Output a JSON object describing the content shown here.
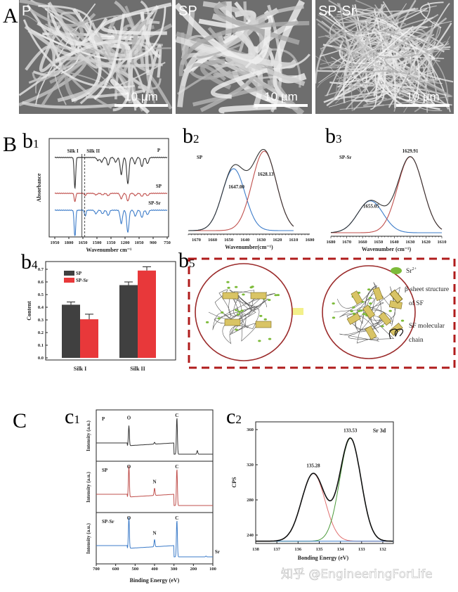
{
  "labels": {
    "A": "A",
    "B": "B",
    "C": "C",
    "b1": [
      "b",
      "1"
    ],
    "b2": [
      "b",
      "2"
    ],
    "b3": [
      "b",
      "3"
    ],
    "b4": [
      "b",
      "4"
    ],
    "b5": [
      "b",
      "5"
    ],
    "c1": [
      "c",
      "1"
    ],
    "c2": [
      "c",
      "2"
    ]
  },
  "sem": [
    {
      "label": "P",
      "scale": "10 µm"
    },
    {
      "label": "SP",
      "scale": "10 µm"
    },
    {
      "label": "SP-Sr",
      "scale": "10 µm"
    }
  ],
  "schematic": {
    "legend_sr": "Sr",
    "legend_sr_sup": "2+",
    "legend_beta_1": "β-sheet structure",
    "legend_beta_2": "of SF",
    "legend_chain_1": "SF molecular",
    "legend_chain_2": "chain",
    "colors": {
      "border": "#b01c1c",
      "sr": "#7dbb3a",
      "beta": "#d9c465",
      "arrow": "#f3f08a"
    }
  },
  "watermark": "知乎 @EngineeringForLife",
  "chart_data": [
    {
      "id": "b1",
      "type": "line",
      "xlabel": "Wavenumber cm⁻¹",
      "ylabel": "Absorbance",
      "xlim": [
        1950,
        750
      ],
      "xticks": [
        1950,
        1800,
        1650,
        1500,
        1350,
        1200,
        1050,
        900,
        750
      ],
      "annotations": [
        {
          "text": "Silk I",
          "x": 1660,
          "style": "solid"
        },
        {
          "text": "Silk II",
          "x": 1630,
          "style": "dashed"
        }
      ],
      "series": [
        {
          "name": "P",
          "color": "#333333",
          "peaks": [
            [
              1735,
              1.0
            ],
            [
              1490,
              0.1
            ],
            [
              1450,
              0.15
            ],
            [
              1380,
              0.25
            ],
            [
              1300,
              0.15
            ],
            [
              1240,
              0.55
            ],
            [
              1170,
              0.85
            ],
            [
              1095,
              0.2
            ],
            [
              1020,
              0.3
            ],
            [
              960,
              0.2
            ]
          ]
        },
        {
          "name": "SP",
          "color": "#c0504d",
          "peaks": [
            [
              1735,
              0.55
            ],
            [
              1625,
              0.15
            ],
            [
              1510,
              0.1
            ],
            [
              1440,
              0.1
            ],
            [
              1380,
              0.15
            ],
            [
              1240,
              0.35
            ],
            [
              1170,
              0.5
            ],
            [
              1090,
              0.15
            ],
            [
              1020,
              0.2
            ],
            [
              960,
              0.15
            ]
          ]
        },
        {
          "name": "SP-Sr",
          "color": "#3d7cc9",
          "peaks": [
            [
              1735,
              0.95
            ],
            [
              1625,
              0.2
            ],
            [
              1510,
              0.12
            ],
            [
              1440,
              0.12
            ],
            [
              1380,
              0.18
            ],
            [
              1240,
              0.45
            ],
            [
              1170,
              0.75
            ],
            [
              1090,
              0.2
            ],
            [
              1020,
              0.25
            ],
            [
              960,
              0.15
            ]
          ]
        }
      ]
    },
    {
      "id": "b2",
      "type": "line",
      "title": "SP",
      "xlabel": "Wavenumber(cm⁻¹)",
      "xlim": [
        1675,
        1600
      ],
      "xticks": [
        1670,
        1660,
        1650,
        1640,
        1630,
        1620,
        1610,
        1600
      ],
      "series": [
        {
          "name": "fit",
          "color": "#333333"
        },
        {
          "name": "peak 1",
          "center": 1647.0,
          "label": "1647.00",
          "amplitude": 0.78,
          "sigma": 7,
          "color": "#3d7cc9"
        },
        {
          "name": "peak 2",
          "center": 1628.13,
          "label": "1628.13",
          "amplitude": 1.0,
          "sigma": 7.5,
          "color": "#c0504d"
        }
      ],
      "xrange_data": [
        1675,
        1610
      ]
    },
    {
      "id": "b3",
      "type": "line",
      "title": "SP-Sr",
      "xlabel": "Wavenumber (cm⁻¹)",
      "xlim": [
        1680,
        1610
      ],
      "xticks": [
        1680,
        1670,
        1660,
        1650,
        1640,
        1630,
        1620,
        1610
      ],
      "series": [
        {
          "name": "fit",
          "color": "#333333"
        },
        {
          "name": "peak 1",
          "center": 1655.05,
          "label": "1655.05",
          "amplitude": 0.42,
          "sigma": 8,
          "color": "#3d7cc9"
        },
        {
          "name": "peak 2",
          "center": 1629.91,
          "label": "1629.91",
          "amplitude": 1.0,
          "sigma": 8,
          "color": "#c0504d"
        }
      ],
      "xrange_data": [
        1680,
        1610
      ]
    },
    {
      "id": "b4",
      "type": "bar",
      "ylabel": "Content",
      "ylim": [
        0,
        0.75
      ],
      "yticks": [
        "0.0",
        "0.1",
        "0.2",
        "0.3",
        "0.4",
        "0.5",
        "0.6",
        "0.7"
      ],
      "categories": [
        "Silk I",
        "Silk II"
      ],
      "legend_position": "top-left",
      "series": [
        {
          "name": "SP",
          "color": "#404040",
          "values": [
            0.42,
            0.575
          ],
          "errors": [
            0.022,
            0.025
          ]
        },
        {
          "name": "SP-Sr",
          "color": "#e8383a",
          "values": [
            0.305,
            0.69
          ],
          "errors": [
            0.04,
            0.03
          ]
        }
      ]
    },
    {
      "id": "c1",
      "type": "line",
      "xlabel": "Binding Energy (eV)",
      "ylabel": "Intensity (a.u.)",
      "xlim": [
        700,
        100
      ],
      "xticks": [
        700,
        600,
        500,
        400,
        300,
        200,
        100
      ],
      "series": [
        {
          "name": "P",
          "color": "#333333",
          "peak_labels": [
            {
              "text": "O",
              "x": 532
            },
            {
              "text": "C",
              "x": 285
            }
          ],
          "peaks": [
            [
              532,
              0.55
            ],
            [
              400,
              0.05
            ],
            [
              285,
              1.0
            ],
            [
              180,
              0.1
            ]
          ]
        },
        {
          "name": "SP",
          "color": "#c0504d",
          "peak_labels": [
            {
              "text": "O",
              "x": 532
            },
            {
              "text": "N",
              "x": 400
            },
            {
              "text": "C",
              "x": 285
            }
          ],
          "peaks": [
            [
              532,
              0.85
            ],
            [
              400,
              0.2
            ],
            [
              285,
              1.0
            ]
          ]
        },
        {
          "name": "SP-Sr",
          "color": "#3d7cc9",
          "peak_labels": [
            {
              "text": "O",
              "x": 532
            },
            {
              "text": "N",
              "x": 400
            },
            {
              "text": "C",
              "x": 285
            },
            {
              "text": "Sr",
              "x": 135
            }
          ],
          "peaks": [
            [
              532,
              0.85
            ],
            [
              400,
              0.2
            ],
            [
              285,
              1.0
            ],
            [
              135,
              0.02
            ]
          ]
        }
      ]
    },
    {
      "id": "c2",
      "type": "line",
      "title": "Sr 3d",
      "xlabel": "Bonding Energy (eV)",
      "ylabel": "CPS",
      "xlim": [
        138,
        131.5
      ],
      "ylim": [
        232,
        370
      ],
      "xticks": [
        138,
        137,
        136,
        135,
        134,
        133,
        132
      ],
      "yticks": [
        240,
        280,
        320,
        360
      ],
      "baseline": 233,
      "series": [
        {
          "name": "envelope",
          "color": "#111111"
        },
        {
          "name": "peak 1",
          "center": 135.28,
          "label": "135.28",
          "height": 77,
          "sigma": 0.55,
          "color": "#e07070"
        },
        {
          "name": "peak 2",
          "center": 133.53,
          "label": "133.53",
          "height": 117,
          "sigma": 0.5,
          "color": "#4b9a3a"
        },
        {
          "name": "background",
          "color": "#3d7cc9"
        }
      ]
    }
  ]
}
